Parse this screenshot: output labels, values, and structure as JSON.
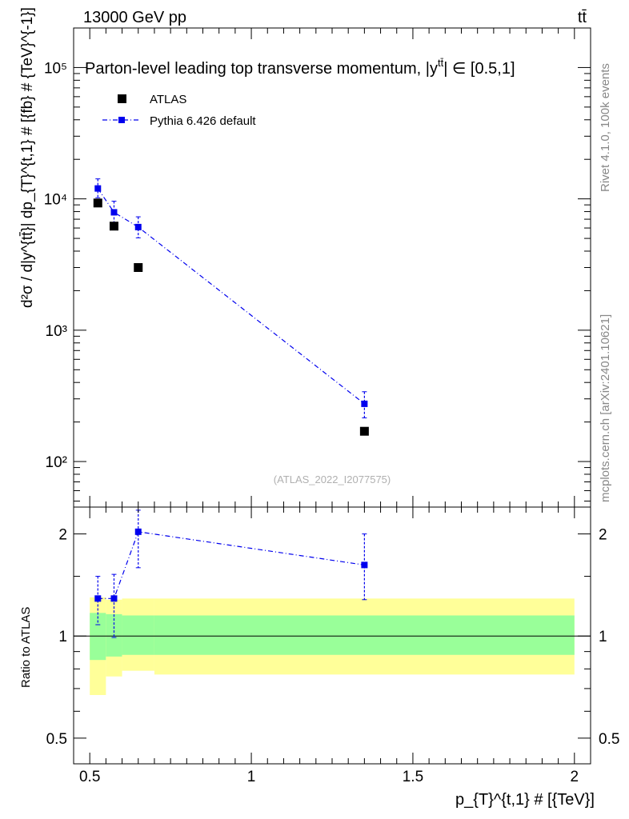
{
  "header": {
    "energy": "13000 GeV pp",
    "process": "tt̄"
  },
  "side": {
    "rivet": "Rivet 4.1.0,  100k events",
    "source": "mcplots.cern.ch [arXiv:2401.10621]"
  },
  "chart_data": [
    {
      "type": "scatter",
      "panel": "main",
      "title": "Parton-level leading top transverse momentum, |y",
      "title_tail": "| ∈ [0.5,1]",
      "title_sup": "tt̄",
      "ylabel": "d²σ / d|y^{tt̄}| dp_{T}^{t,1} # [{fb} # {TeV}^{-1}]",
      "yscale": "log",
      "ylim": [
        45,
        200000
      ],
      "xlim": [
        0.45,
        2.05
      ],
      "ytick_labels": [
        "10²",
        "10³",
        "10⁴",
        "10⁵"
      ],
      "ytick_values": [
        100,
        1000,
        10000,
        100000
      ],
      "watermark": "(ATLAS_2022_I2077575)",
      "legend": {
        "position": "top-left",
        "entries": [
          "ATLAS",
          "Pythia 6.426 default"
        ]
      },
      "series": [
        {
          "name": "ATLAS",
          "color": "#000000",
          "marker": "square",
          "x": [
            0.525,
            0.575,
            0.65,
            1.35
          ],
          "y": [
            9300,
            6200,
            3000,
            170
          ]
        },
        {
          "name": "Pythia 6.426 default",
          "color": "#0000ee",
          "marker": "square",
          "line": "dash-dot",
          "x": [
            0.525,
            0.575,
            0.65,
            1.35
          ],
          "y": [
            12000,
            7900,
            6100,
            275
          ],
          "yerr_low": [
            10200,
            6600,
            5050,
            215
          ],
          "yerr_high": [
            14200,
            9600,
            7300,
            340
          ]
        }
      ]
    },
    {
      "type": "scatter",
      "panel": "ratio",
      "ylabel": "Ratio to ATLAS",
      "xlabel": "p_{T}^{t,1} # [{TeV}]",
      "yscale": "log",
      "ylim": [
        0.42,
        2.4
      ],
      "xlim": [
        0.45,
        2.05
      ],
      "ytick_labels": [
        "0.5",
        "1",
        "2"
      ],
      "ytick_values": [
        0.5,
        1,
        2
      ],
      "xtick_labels": [
        "0.5",
        "1",
        "1.5",
        "2"
      ],
      "xtick_values": [
        0.5,
        1.0,
        1.5,
        2.0
      ],
      "reference": 1.0,
      "bands": {
        "edges": [
          0.5,
          0.55,
          0.6,
          0.7,
          2.0
        ],
        "inner_low": [
          0.85,
          0.87,
          0.88,
          0.88
        ],
        "inner_high": [
          1.17,
          1.16,
          1.15,
          1.15
        ],
        "outer_low": [
          0.67,
          0.76,
          0.79,
          0.77
        ],
        "outer_high": [
          1.3,
          1.28,
          1.29,
          1.29
        ],
        "inner_color": "#99ff99",
        "outer_color": "#ffff99"
      },
      "series": [
        {
          "name": "Pythia 6.426 default",
          "color": "#0000ee",
          "x": [
            0.525,
            0.575,
            0.65,
            1.35
          ],
          "y": [
            1.29,
            1.29,
            2.03,
            1.62
          ],
          "yerr_low": [
            1.08,
            0.99,
            1.59,
            1.28
          ],
          "yerr_high": [
            1.5,
            1.52,
            2.35,
            2.0
          ]
        }
      ]
    }
  ]
}
